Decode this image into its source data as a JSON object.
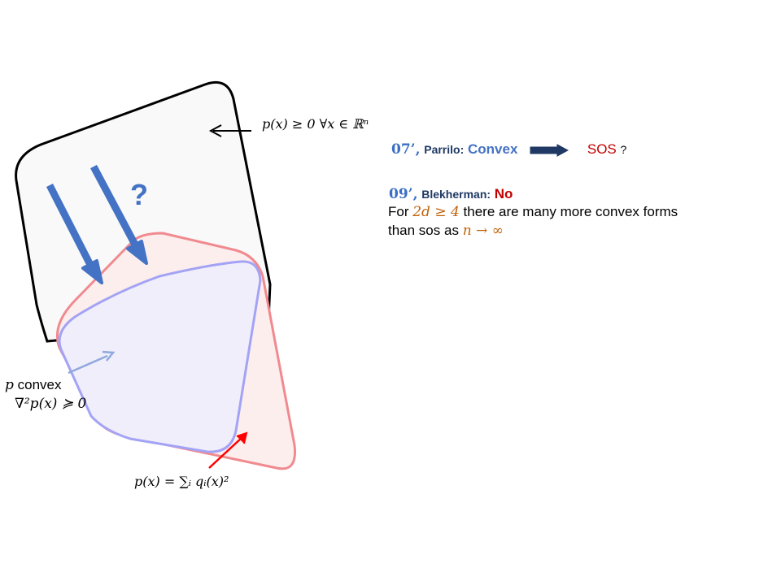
{
  "diagram": {
    "question_mark": "?",
    "label_nonnegative": "p(x) ≥ 0 ∀x ∈ ℝⁿ",
    "label_convex_p": "p",
    "label_convex_word": "convex",
    "label_hessian": "∇²p(x) ≽ 0",
    "label_sos_formula": "p(x) = ∑ᵢ qᵢ(x)²",
    "colors": {
      "outer_set_stroke": "#000000",
      "outer_set_fill": "#f9f9f9",
      "sos_set_stroke": "#f08a8f",
      "sos_set_fill": "#fdeeee",
      "convex_set_stroke": "#a3a3f5",
      "convex_set_fill": "#f1eefb",
      "big_arrows": "#4472c4",
      "convex_pointer": "#8fa9dc",
      "sos_pointer": "#ff0000"
    }
  },
  "text": {
    "parrilo_year": "07’,",
    "parrilo_name": "Parrilo:",
    "parrilo_convex": "Convex",
    "parrilo_sos": "SOS",
    "parrilo_q": "?",
    "blek_year": "09’,",
    "blek_name": "Blekherman:",
    "blek_no": "No",
    "line1_for": "For",
    "line1_math": "2d ≥ 4",
    "line1_rest": "there are many more convex forms",
    "line2_start": "than sos as",
    "line2_math": "n → ∞"
  }
}
